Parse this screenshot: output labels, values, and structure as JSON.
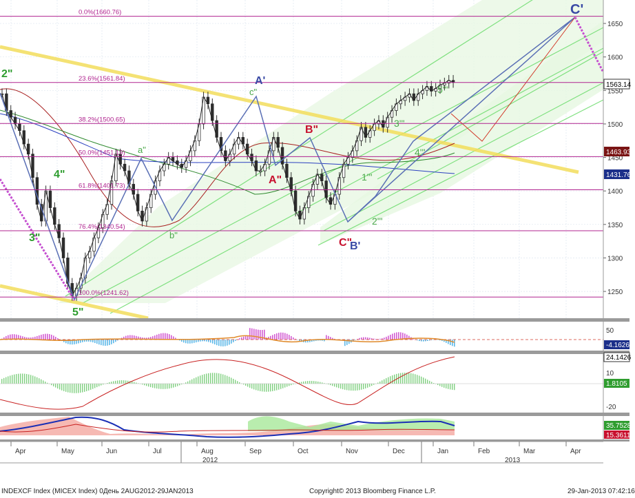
{
  "footer": {
    "left": "INDEXCF Index (MICEX Index) 0День 2AUG2012-29JAN2013",
    "center": "Copyright© 2013 Bloomberg Finance L.P.",
    "right": "29-Jan-2013 07:42:16"
  },
  "colors": {
    "fib_line": "#b0238f",
    "channel": "#7fe07f",
    "trend_yellow": "#f3de5c",
    "projection_blue": "#5a6fb5",
    "projection_red": "#d23a2a",
    "wave_green": "#2e9d2e",
    "wave_red": "#c8102e",
    "wave_blue": "#3a4aa5",
    "ma_red": "#a82020",
    "ma_green": "#2f8a2f",
    "ma_blue": "#2a3fc0",
    "hist_pos": "#d25ad2",
    "hist_neg": "#5bb8e8"
  },
  "chart_data": [
    {
      "type": "line",
      "title": "",
      "ylabel": "",
      "x_ticks": [
        "Apr",
        "May",
        "Jun",
        "Jul",
        "Aug",
        "Sep",
        "Oct",
        "Nov",
        "Dec",
        "Jan",
        "Feb",
        "Mar",
        "Apr"
      ],
      "year_labels": [
        "2012",
        "2013"
      ],
      "ylim": [
        1210,
        1685
      ],
      "y_ticks": [
        1250,
        1300,
        1350,
        1400,
        1450,
        1500,
        1550,
        1600,
        1650
      ],
      "series": [
        {
          "x": [
            0,
            3,
            6,
            9,
            12,
            15,
            18,
            21,
            24,
            27,
            30,
            33,
            36,
            39,
            42,
            45,
            48,
            51,
            54,
            57,
            60,
            63,
            66,
            69,
            72,
            75,
            78,
            81,
            84,
            87,
            90,
            93,
            96,
            99,
            102,
            105,
            108,
            111,
            114,
            117,
            120,
            123,
            126,
            129,
            132,
            135,
            138,
            141,
            144,
            147,
            150,
            153,
            156,
            159,
            162,
            165,
            168,
            171,
            174,
            177,
            180,
            183,
            186,
            189,
            192,
            195,
            198,
            201,
            204,
            207,
            210,
            213,
            216,
            219,
            222,
            225,
            228,
            231,
            234,
            237,
            240,
            243,
            246,
            249,
            252,
            255,
            258,
            261,
            264,
            267,
            270,
            273,
            276,
            279,
            282,
            285,
            288,
            291,
            294,
            297,
            300,
            303,
            306,
            309
          ],
          "values": [
            1545,
            1520,
            1510,
            1500,
            1490,
            1470,
            1455,
            1420,
            1380,
            1355,
            1400,
            1375,
            1350,
            1330,
            1300,
            1262,
            1244,
            1255,
            1270,
            1300,
            1310,
            1330,
            1345,
            1365,
            1380,
            1415,
            1455,
            1440,
            1430,
            1410,
            1395,
            1370,
            1355,
            1375,
            1395,
            1415,
            1430,
            1440,
            1450,
            1445,
            1440,
            1435,
            1445,
            1460,
            1475,
            1500,
            1540,
            1530,
            1505,
            1480,
            1460,
            1445,
            1455,
            1470,
            1480,
            1470,
            1455,
            1445,
            1430,
            1430,
            1440,
            1460,
            1480,
            1465,
            1440,
            1420,
            1400,
            1370,
            1358,
            1375,
            1392,
            1410,
            1425,
            1415,
            1390,
            1380,
            1395,
            1420,
            1440,
            1450,
            1460,
            1475,
            1495,
            1480,
            1490,
            1500,
            1505,
            1495,
            1510,
            1520,
            1530,
            1535,
            1540,
            1545,
            1535,
            1545,
            1550,
            1556,
            1549,
            1553,
            1558,
            1561,
            1565,
            1562
          ]
        }
      ],
      "price_tags": [
        "1563.14",
        "1463.93",
        "1431.76"
      ],
      "fib_levels": [
        {
          "label": "0.0%(1660.76)",
          "value": 1660.76
        },
        {
          "label": "23.6%(1561.84)",
          "value": 1561.84
        },
        {
          "label": "38.2%(1500.65)",
          "value": 1500.65
        },
        {
          "label": "50.0%(1451.19)",
          "value": 1451.19
        },
        {
          "label": "61.8%(1401.73)",
          "value": 1401.73
        },
        {
          "label": "76.4%(1340.54)",
          "value": 1340.54
        },
        {
          "label": "100.0%(1241.62)",
          "value": 1241.62
        }
      ],
      "wave_labels": [
        "2\"",
        "4\"",
        "3\"",
        "5\"",
        "a\"",
        "b\"",
        "c\"",
        "A'",
        "A\"",
        "B\"",
        "C\"",
        "B'",
        "1'\"",
        "2'\"",
        "3'\"",
        "4'\"",
        "5'\"",
        "C'"
      ]
    },
    {
      "type": "bar",
      "title": "",
      "y_ticks": [
        50
      ],
      "price_tags": [
        "-4.1626"
      ]
    },
    {
      "type": "bar",
      "title": "",
      "y_ticks": [
        10,
        -20
      ],
      "price_tags": [
        "24.1426",
        "1.8105"
      ]
    },
    {
      "type": "area",
      "title": "",
      "price_tags": [
        "35.7528",
        "15.3611"
      ]
    }
  ]
}
